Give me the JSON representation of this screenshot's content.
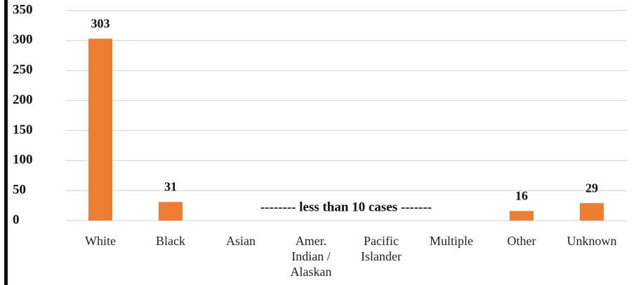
{
  "chart_data": {
    "type": "bar",
    "categories": [
      "White",
      "Black",
      "Asian",
      "Amer. Indian / Alaskan",
      "Pacific Islander",
      "Multiple",
      "Other",
      "Unknown"
    ],
    "values": [
      303,
      31,
      null,
      null,
      null,
      null,
      16,
      29
    ],
    "color": "#ed7d31",
    "annotation": "-------- less than 10 cases -------",
    "ylim": [
      0,
      350
    ],
    "yticks": [
      0,
      50,
      100,
      150,
      200,
      250,
      300,
      350
    ],
    "grid": true
  }
}
